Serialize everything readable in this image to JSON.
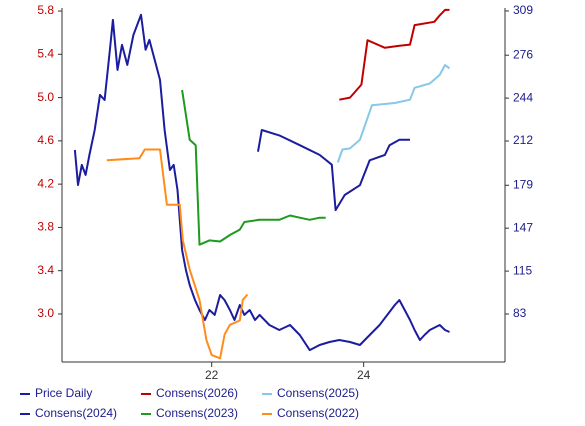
{
  "chart_data": {
    "type": "line",
    "xlim": [
      2020.03,
      2025.86
    ],
    "xticks": [
      {
        "value": 2022,
        "label": "22"
      },
      {
        "value": 2024,
        "label": "24"
      }
    ],
    "ylim": [
      2.556,
      5.828
    ],
    "yticks": [
      {
        "value": 3.0,
        "label": "3.0"
      },
      3.4,
      3.8,
      4.2,
      4.6,
      {
        "value": 5.0,
        "label": "5.0"
      },
      5.4,
      5.8
    ],
    "y2lim": [
      47.2,
      311.2
    ],
    "y2ticks": [
      83,
      115,
      147,
      179,
      212,
      244,
      276,
      309
    ],
    "series": [
      {
        "name": "Price Daily",
        "color": "#1c1ca0",
        "axis": "y2",
        "x": [
          2020.2,
          2020.24,
          2020.29,
          2020.34,
          2020.39,
          2020.46,
          2020.53,
          2020.59,
          2020.66,
          2020.7,
          2020.76,
          2020.82,
          2020.89,
          2020.97,
          2021.07,
          2021.13,
          2021.18,
          2021.25,
          2021.32,
          2021.38,
          2021.45,
          2021.5,
          2021.55,
          2021.61,
          2021.66,
          2021.71,
          2021.78,
          2021.84,
          2021.91,
          2021.97,
          2022.04,
          2022.11,
          2022.17,
          2022.24,
          2022.3,
          2022.37,
          2022.43,
          2022.5,
          2022.57,
          2022.63,
          2022.76,
          2022.89,
          2023.03,
          2023.16,
          2023.29,
          2023.42,
          2023.55,
          2023.68,
          2023.82,
          2023.95,
          2024.08,
          2024.21,
          2024.34,
          2024.41,
          2024.47,
          2024.54,
          2024.61,
          2024.67,
          2024.74,
          2024.8,
          2024.87,
          2025.0,
          2025.07,
          2025.13
        ],
        "values": [
          205.3,
          179.2,
          194.2,
          186.7,
          201.6,
          220.3,
          246.4,
          242.6,
          280.0,
          302.3,
          265.0,
          283.7,
          268.8,
          291.1,
          306.1,
          280.0,
          287.4,
          272.5,
          257.6,
          220.3,
          190.4,
          194.2,
          175.5,
          130.7,
          115.8,
          104.6,
          93.4,
          86.0,
          78.5,
          86.0,
          82.3,
          97.2,
          93.4,
          86.0,
          78.5,
          89.7,
          82.3,
          86.0,
          78.5,
          82.3,
          74.8,
          71.1,
          74.8,
          67.3,
          56.1,
          59.9,
          62.1,
          63.6,
          62.1,
          59.9,
          67.3,
          74.8,
          84.5,
          89.7,
          93.4,
          86.0,
          78.5,
          71.1,
          63.6,
          67.3,
          71.1,
          74.8,
          71.1,
          69.6
        ]
      },
      {
        "name": "Consens(2026)",
        "color": "#c00000",
        "x": [
          2023.68,
          2023.82,
          2023.97,
          2024.05,
          2024.28,
          2024.47,
          2024.61,
          2024.67,
          2024.93,
          2025.0,
          2025.07,
          2025.13
        ],
        "values": [
          4.98,
          5.0,
          5.12,
          5.53,
          5.46,
          5.48,
          5.49,
          5.67,
          5.7,
          5.76,
          5.81,
          5.81
        ]
      },
      {
        "name": "Consens(2025)",
        "color": "#87c8e8",
        "x": [
          2023.66,
          2023.72,
          2023.82,
          2023.95,
          2024.04,
          2024.11,
          2024.41,
          2024.61,
          2024.67,
          2024.87,
          2025.0,
          2025.07,
          2025.13
        ],
        "values": [
          4.4,
          4.52,
          4.53,
          4.61,
          4.79,
          4.93,
          4.95,
          4.98,
          5.09,
          5.13,
          5.21,
          5.3,
          5.27
        ]
      },
      {
        "name": "Consens(2024)",
        "color": "#1c1ca0",
        "x": [
          2022.61,
          2022.66,
          2022.89,
          2023.16,
          2023.42,
          2023.58,
          2023.63,
          2023.75,
          2023.95,
          2024.08,
          2024.28,
          2024.34,
          2024.47,
          2024.61
        ],
        "values": [
          4.5,
          4.7,
          4.65,
          4.56,
          4.47,
          4.38,
          3.96,
          4.1,
          4.19,
          4.42,
          4.47,
          4.56,
          4.61,
          4.61
        ]
      },
      {
        "name": "Consens(2023)",
        "color": "#1e9a1e",
        "x": [
          2021.61,
          2021.71,
          2021.79,
          2021.84,
          2021.97,
          2022.11,
          2022.24,
          2022.37,
          2022.43,
          2022.63,
          2022.89,
          2023.03,
          2023.16,
          2023.29,
          2023.42,
          2023.5
        ],
        "values": [
          5.07,
          4.61,
          4.56,
          3.64,
          3.68,
          3.67,
          3.73,
          3.78,
          3.85,
          3.87,
          3.87,
          3.91,
          3.89,
          3.87,
          3.89,
          3.89
        ]
      },
      {
        "name": "Consens(2022)",
        "color": "#ff8c1a",
        "x": [
          2020.62,
          2021.05,
          2021.12,
          2021.32,
          2021.41,
          2021.58,
          2021.62,
          2021.71,
          2021.84,
          2021.93,
          2022.0,
          2022.11,
          2022.17,
          2022.24,
          2022.37,
          2022.41,
          2022.47
        ],
        "values": [
          4.42,
          4.44,
          4.52,
          4.52,
          4.01,
          4.01,
          3.68,
          3.41,
          3.13,
          2.76,
          2.62,
          2.59,
          2.81,
          2.9,
          2.94,
          3.13,
          3.18
        ]
      }
    ]
  }
}
